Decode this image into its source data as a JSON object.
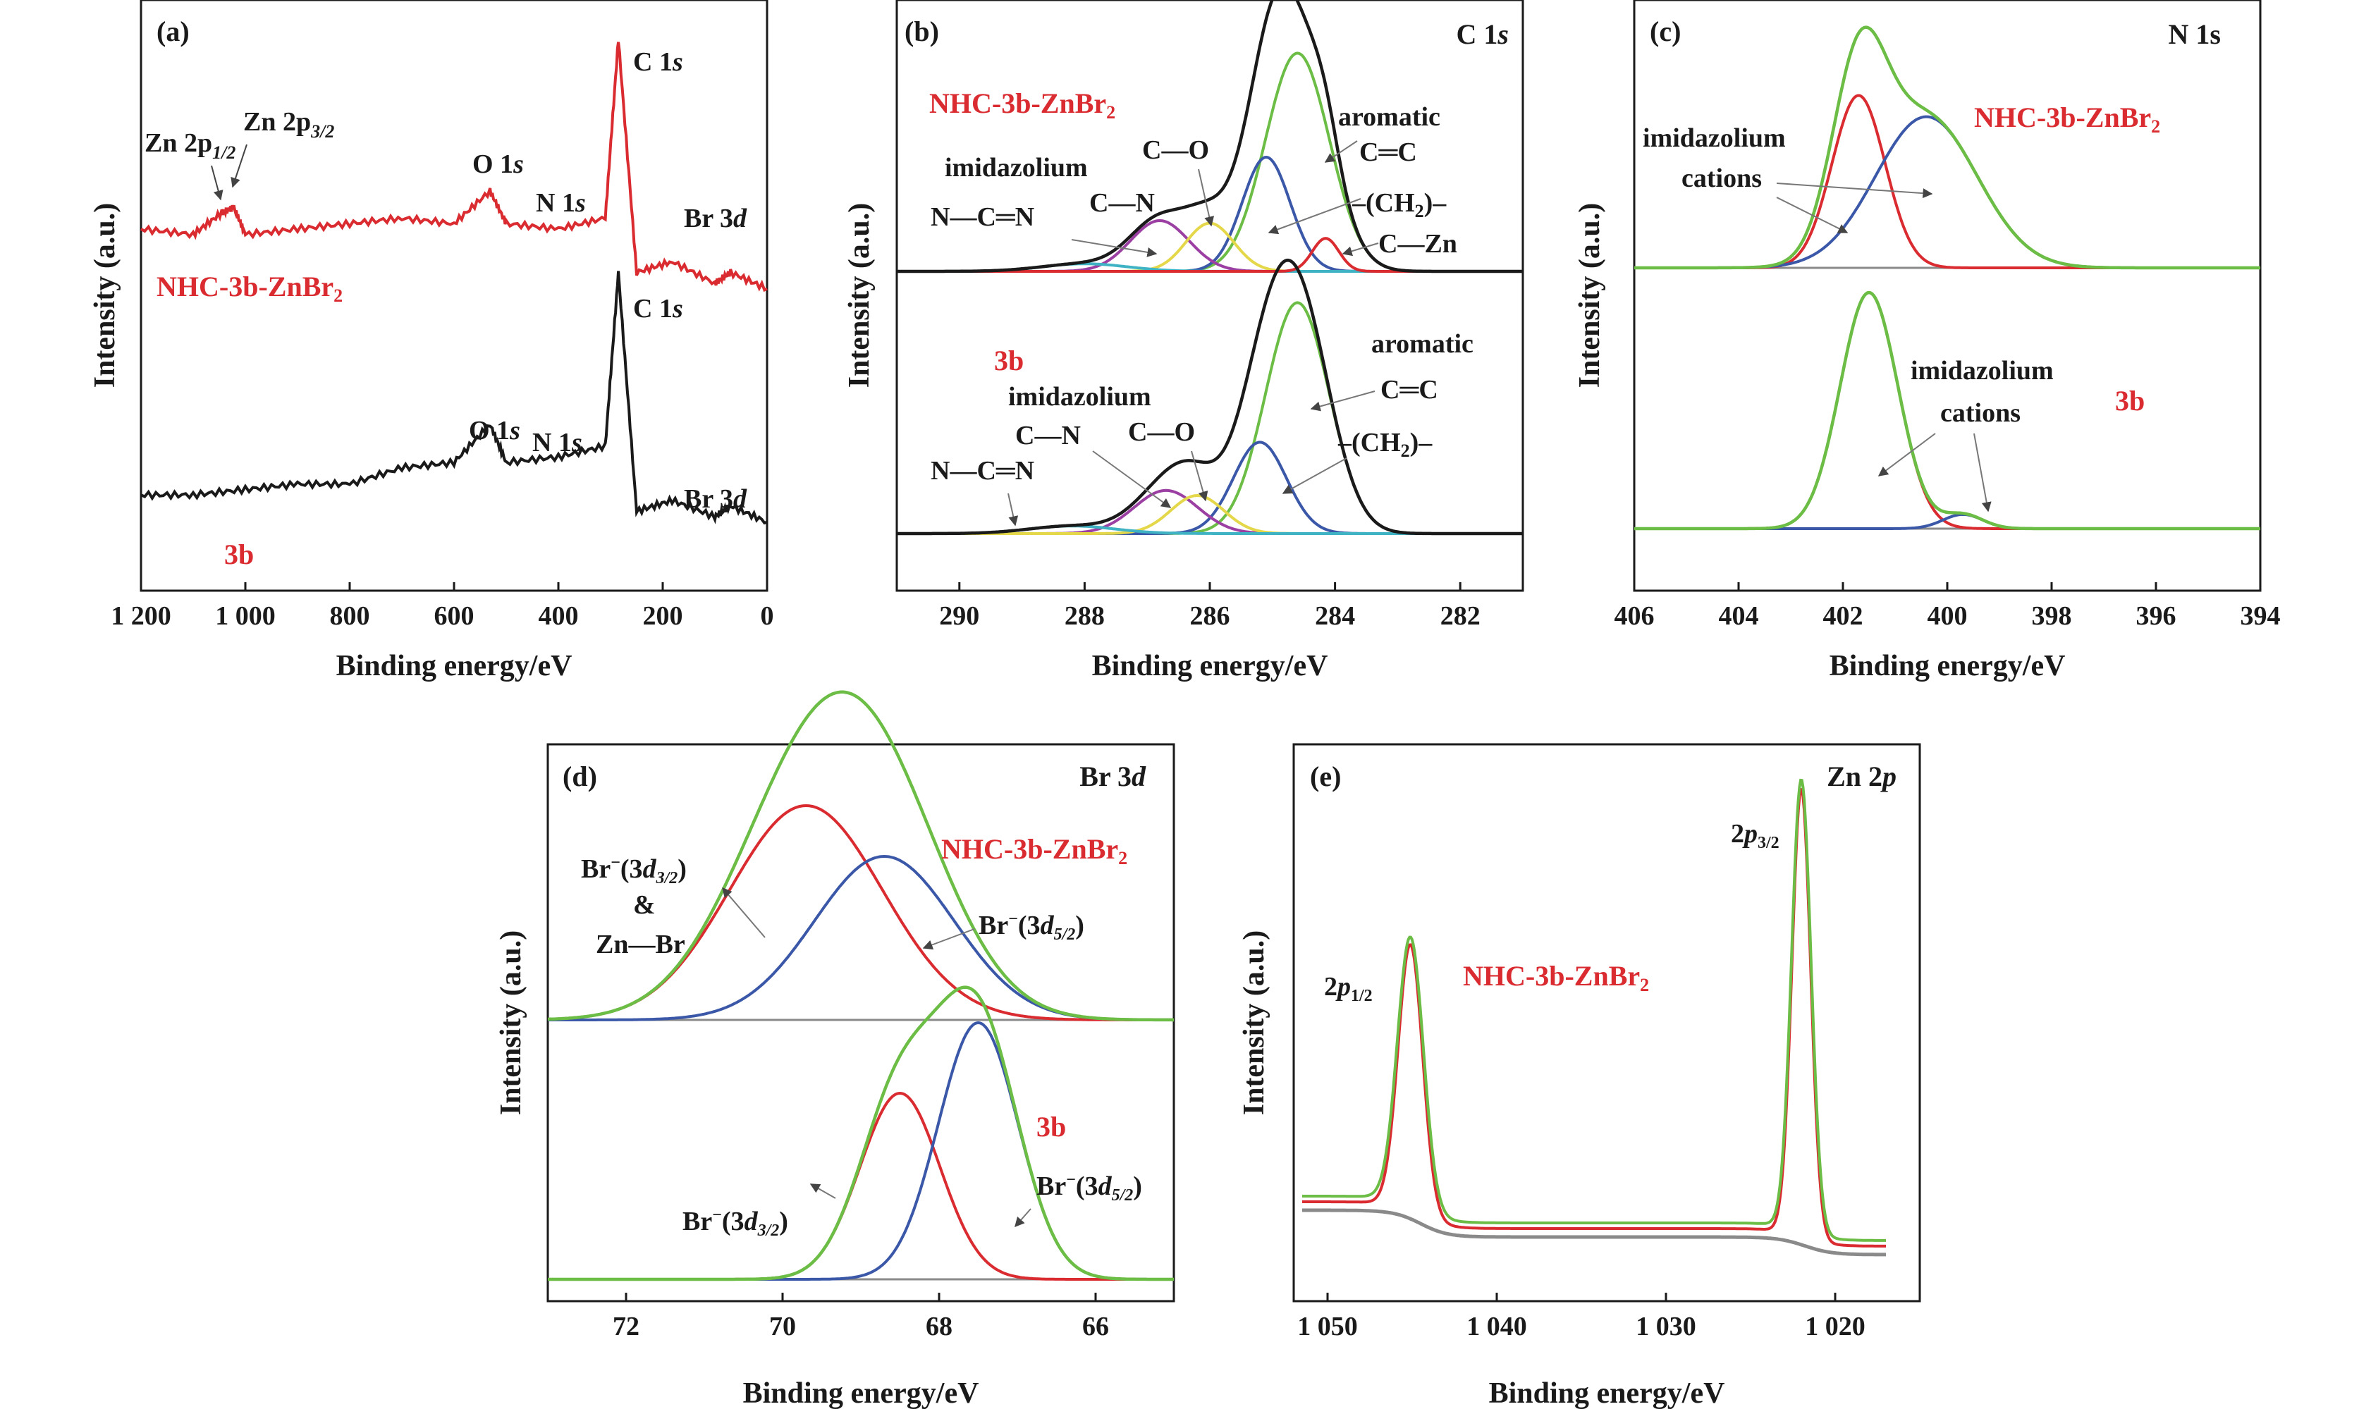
{
  "colors": {
    "red": "#d92b30",
    "black": "#1a1a1a",
    "green": "#6cbd45",
    "blue": "#3a57a8",
    "purple": "#9b3fa3",
    "yellow": "#e4d84a",
    "cyan": "#3fb3c4",
    "gray": "#8a8a8a"
  },
  "chart_data": [
    {
      "type": "line",
      "panel_label": "(a)",
      "xlabel": "Binding energy/eV",
      "ylabel": "Intensity (a.u.)",
      "xlim": [
        1200,
        0
      ],
      "x_reversed": true,
      "xticks": [
        1200,
        1000,
        800,
        600,
        400,
        200,
        0
      ],
      "xtick_labels": [
        "1 200",
        "1 000",
        "800",
        "600",
        "400",
        "200",
        "0"
      ],
      "series": [
        {
          "name": "NHC-3b-ZnBr₂",
          "color": "#d92b30",
          "x": [
            1200,
            1100,
            1045,
            1022,
            1000,
            900,
            800,
            700,
            600,
            531,
            500,
            400,
            310,
            285,
            250,
            182,
            100,
            70,
            0
          ],
          "y": [
            0.63,
            0.62,
            0.66,
            0.67,
            0.62,
            0.63,
            0.64,
            0.65,
            0.64,
            0.7,
            0.64,
            0.63,
            0.65,
            0.98,
            0.55,
            0.57,
            0.53,
            0.55,
            0.52
          ]
        },
        {
          "name": "3b",
          "color": "#1a1a1a",
          "x": [
            1200,
            1100,
            1000,
            900,
            800,
            700,
            600,
            531,
            500,
            400,
            310,
            285,
            250,
            182,
            100,
            70,
            0
          ],
          "y": [
            0.14,
            0.14,
            0.15,
            0.16,
            0.16,
            0.19,
            0.2,
            0.27,
            0.2,
            0.21,
            0.23,
            0.55,
            0.11,
            0.13,
            0.1,
            0.12,
            0.09
          ]
        }
      ],
      "annotations": [
        {
          "text": "Zn 2p",
          "sub": "1/2",
          "x": 1045
        },
        {
          "text": "Zn 2p",
          "sub": "3/2",
          "x": 1022
        },
        {
          "text": "C 1s",
          "x": 285
        },
        {
          "text": "O 1s",
          "x": 531
        },
        {
          "text": "N 1s",
          "x": 400
        },
        {
          "text": "Br 3d",
          "x": 70
        }
      ],
      "sample_labels": [
        "NHC-3b-ZnBr₂",
        "3b"
      ]
    },
    {
      "type": "line",
      "panel_label": "(b)",
      "region": "C 1s",
      "xlabel": "Binding energy/eV",
      "ylabel": "Intensity (a.u.)",
      "xlim": [
        291,
        281
      ],
      "x_reversed": true,
      "xticks": [
        290,
        288,
        286,
        284,
        282
      ],
      "xtick_labels": [
        "290",
        "288",
        "286",
        "284",
        "282"
      ],
      "spectra": [
        {
          "sample": "NHC-3b-ZnBr₂",
          "envelope_color": "#1a1a1a",
          "components": [
            {
              "assignment": "aromatic C=C",
              "center": 284.6,
              "height": 0.86,
              "fwhm": 1.2,
              "color": "#6cbd45"
            },
            {
              "assignment": "-(CH2)-",
              "center": 285.1,
              "height": 0.45,
              "fwhm": 0.9,
              "color": "#3a57a8"
            },
            {
              "assignment": "C-N imidazolium",
              "center": 286.8,
              "height": 0.2,
              "fwhm": 1.1,
              "color": "#9b3fa3"
            },
            {
              "assignment": "C-O",
              "center": 286.0,
              "height": 0.19,
              "fwhm": 0.9,
              "color": "#e4d84a"
            },
            {
              "assignment": "N-C=N",
              "center": 288.0,
              "height": 0.03,
              "fwhm": 1.6,
              "color": "#3fb3c4"
            },
            {
              "assignment": "C-Zn",
              "center": 284.15,
              "height": 0.13,
              "fwhm": 0.5,
              "color": "#d92b30"
            }
          ]
        },
        {
          "sample": "3b",
          "envelope_color": "#1a1a1a",
          "components": [
            {
              "assignment": "aromatic C=C",
              "center": 284.6,
              "height": 0.91,
              "fwhm": 1.2,
              "color": "#6cbd45"
            },
            {
              "assignment": "-(CH2)-",
              "center": 285.2,
              "height": 0.36,
              "fwhm": 1.0,
              "color": "#3a57a8"
            },
            {
              "assignment": "C-N imidazolium",
              "center": 286.7,
              "height": 0.17,
              "fwhm": 1.2,
              "color": "#9b3fa3"
            },
            {
              "assignment": "C-O",
              "center": 286.2,
              "height": 0.15,
              "fwhm": 1.0,
              "color": "#e4d84a"
            },
            {
              "assignment": "N-C=N",
              "center": 288.2,
              "height": 0.03,
              "fwhm": 1.6,
              "color": "#3fb3c4"
            }
          ]
        }
      ]
    },
    {
      "type": "line",
      "panel_label": "(c)",
      "region": "N 1s",
      "xlabel": "Binding energy/eV",
      "ylabel": "Intensity (a.u.)",
      "xlim": [
        406,
        394
      ],
      "x_reversed": true,
      "xticks": [
        406,
        404,
        402,
        400,
        398,
        396,
        394
      ],
      "xtick_labels": [
        "406",
        "404",
        "402",
        "400",
        "398",
        "396",
        "394"
      ],
      "spectra": [
        {
          "sample": "NHC-3b-ZnBr₂",
          "components": [
            {
              "assignment": "imidazolium cations",
              "center": 401.7,
              "height": 0.73,
              "fwhm": 1.2,
              "color": "#d92b30"
            },
            {
              "assignment": "imidazolium cations",
              "center": 400.4,
              "height": 0.64,
              "fwhm": 2.3,
              "color": "#3a57a8"
            }
          ]
        },
        {
          "sample": "3b",
          "components": [
            {
              "assignment": "imidazolium cations",
              "center": 401.5,
              "height": 1.0,
              "fwhm": 1.3,
              "color": "#d92b30"
            },
            {
              "assignment": "imidazolium cations",
              "center": 399.7,
              "height": 0.06,
              "fwhm": 0.9,
              "color": "#3a57a8"
            }
          ]
        }
      ]
    },
    {
      "type": "line",
      "panel_label": "(d)",
      "region": "Br 3d",
      "xlabel": "Binding energy/eV",
      "ylabel": "Intensity (a.u.)",
      "xlim": [
        73,
        65
      ],
      "x_reversed": true,
      "xticks": [
        72,
        70,
        68,
        66
      ],
      "xtick_labels": [
        "72",
        "70",
        "68",
        "66"
      ],
      "spectra": [
        {
          "sample": "NHC-3b-ZnBr₂",
          "components": [
            {
              "assignment": "Br⁻(3d3/2) & Zn—Br",
              "center": 69.7,
              "height": 0.76,
              "fwhm": 2.3,
              "color": "#d92b30"
            },
            {
              "assignment": "Br⁻(3d5/2)",
              "center": 68.7,
              "height": 0.58,
              "fwhm": 2.1,
              "color": "#3a57a8"
            }
          ]
        },
        {
          "sample": "3b",
          "components": [
            {
              "assignment": "Br⁻(3d3/2)",
              "center": 68.5,
              "height": 0.66,
              "fwhm": 1.2,
              "color": "#d92b30"
            },
            {
              "assignment": "Br⁻(3d5/2)",
              "center": 67.5,
              "height": 0.91,
              "fwhm": 1.2,
              "color": "#3a57a8"
            }
          ]
        }
      ]
    },
    {
      "type": "line",
      "panel_label": "(e)",
      "region": "Zn 2p",
      "sample": "NHC-3b-ZnBr₂",
      "xlabel": "Binding energy/eV",
      "ylabel": "Intensity (a.u.)",
      "xlim": [
        1052,
        1015
      ],
      "x_reversed": true,
      "xticks": [
        1050,
        1040,
        1030,
        1020
      ],
      "xtick_labels": [
        "1 050",
        "1 040",
        "1 030",
        "1 020"
      ],
      "peaks": [
        {
          "assignment": "2p1/2",
          "center": 1045.1,
          "height": 0.58
        },
        {
          "assignment": "2p3/2",
          "center": 1022.0,
          "height": 1.0
        }
      ]
    }
  ],
  "texts": {
    "a": {
      "panel": "(a)",
      "zn12": "Zn 2p",
      "zn12sub": "1/2",
      "zn32": "Zn 2p",
      "zn32sub": "3/2",
      "c1s_top": "C 1",
      "c1s_top_s": "s",
      "o1s_top": "O 1",
      "o1s_top_s": "s",
      "n1s_top": "N 1",
      "n1s_top_s": "s",
      "br_top": "Br 3",
      "br_top_d": "d",
      "c1s_bot": "C 1",
      "c1s_bot_s": "s",
      "o1s_bot": "O 1",
      "o1s_bot_s": "s",
      "n1s_bot": "N 1",
      "n1s_bot_s": "s",
      "br_bot": "Br 3",
      "br_bot_d": "d",
      "sample_top": "NHC-3b-ZnBr",
      "sample_top_sub": "2",
      "sample_bot": "3b"
    },
    "b": {
      "panel": "(b)",
      "region": "C 1",
      "region_s": "s",
      "sample_top": "NHC-3b-ZnBr",
      "sample_top_sub": "2",
      "imid_top": "imidazolium",
      "cn_top": "C—N",
      "co_top": "C—O",
      "ncn_top": "N—C═N",
      "arom_top": "aromatic",
      "cc_top": "C═C",
      "ch2_top": "–(CH",
      "ch2_top_sub": "2",
      "ch2_top_end": ")–",
      "czn_top": "C—Zn",
      "sample_bot": "3b",
      "imid_bot": "imidazolium",
      "cn_bot": "C—N",
      "co_bot": "C—O",
      "ncn_bot": "N—C═N",
      "arom_bot": "aromatic",
      "cc_bot": "C═C",
      "ch2_bot": "–(CH",
      "ch2_bot_sub": "2",
      "ch2_bot_end": ")–"
    },
    "c": {
      "panel": "(c)",
      "region": "N 1s",
      "sample_top": "NHC-3b-ZnBr",
      "sample_top_sub": "2",
      "imid_top": "imidazolium",
      "cat_top": "cations",
      "imid_bot": "imidazolium",
      "cat_bot": "cations",
      "sample_bot": "3b"
    },
    "d": {
      "panel": "(d)",
      "region": "Br 3",
      "region_d": "d",
      "sample_top": "NHC-3b-ZnBr",
      "sample_top_sub": "2",
      "br32_top": "Br",
      "br32_top_sup": "−",
      "br32_top_mid": "(3",
      "br32_top_d": "d",
      "br32_top_sub": "3/2",
      "br32_top_end": ")",
      "amp": "&",
      "znbr": "Zn—Br",
      "br52_top": "Br",
      "br52_top_sup": "−",
      "br52_top_mid": "(3",
      "br52_top_d": "d",
      "br52_top_sub": "5/2",
      "br52_top_end": ")",
      "sample_bot": "3b",
      "br32_bot": "Br",
      "br32_bot_sup": "−",
      "br32_bot_mid": "(3",
      "br32_bot_d": "d",
      "br32_bot_sub": "3/2",
      "br32_bot_end": ")",
      "br52_bot": "Br",
      "br52_bot_sup": "−",
      "br52_bot_mid": "(3",
      "br52_bot_d": "d",
      "br52_bot_sub": "5/2",
      "br52_bot_end": ")"
    },
    "e": {
      "panel": "(e)",
      "region": "Zn 2",
      "region_p": "p",
      "p12": "2",
      "p12_p": "p",
      "p12_sub": "1/2",
      "p32": "2",
      "p32_p": "p",
      "p32_sub": "3/2",
      "sample": "NHC-3b-ZnBr",
      "sample_sub": "2"
    }
  }
}
